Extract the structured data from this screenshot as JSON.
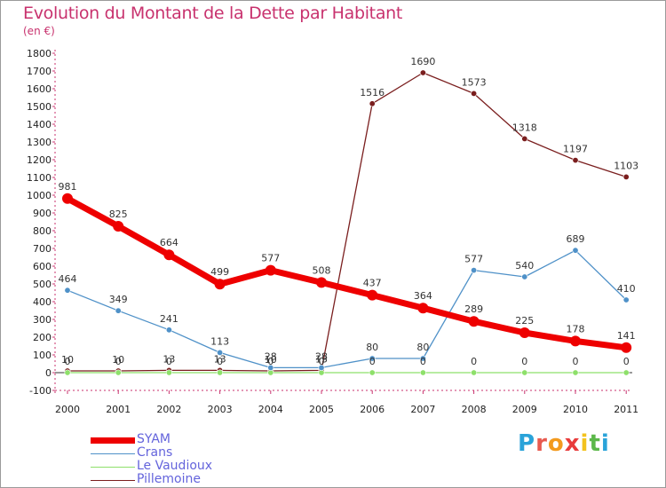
{
  "title": "Evolution du Montant de la Dette par Habitant",
  "subtitle": "(en €)",
  "logo": {
    "text": "Proxiti",
    "letter_colors": [
      "#2aa3d9",
      "#e85a4f",
      "#f39a1e",
      "#e83c3c",
      "#f3c31e",
      "#5cb84a",
      "#2aa3d9"
    ]
  },
  "chart_data": {
    "type": "line",
    "title": "Evolution du Montant de la Dette par Habitant",
    "subtitle": "(en €)",
    "xlabel": "",
    "ylabel": "",
    "x": [
      "2000",
      "2001",
      "2002",
      "2003",
      "2004",
      "2005",
      "2006",
      "2007",
      "2008",
      "2009",
      "2010",
      "2011"
    ],
    "ylim": [
      -100,
      1800
    ],
    "yticks": [
      -100,
      0,
      100,
      200,
      300,
      400,
      500,
      600,
      700,
      800,
      900,
      1000,
      1100,
      1200,
      1300,
      1400,
      1500,
      1600,
      1700,
      1800
    ],
    "grid": false,
    "legend": "bottom-left",
    "series": [
      {
        "name": "Pillemoine",
        "color": "#7a1e1e",
        "values": [
          10,
          10,
          13,
          13,
          10,
          13,
          1516,
          1690,
          1573,
          1318,
          1197,
          1103
        ],
        "labels": [
          "10",
          "10",
          "13",
          "13",
          "10",
          "13",
          "1516",
          "1690",
          "1573",
          "1318",
          "1197",
          "1103"
        ]
      },
      {
        "name": "Le Vaudioux",
        "color": "#8ee06a",
        "values": [
          0,
          0,
          0,
          0,
          0,
          0,
          0,
          0,
          0,
          0,
          0,
          0
        ],
        "labels": [
          "0",
          "0",
          "0",
          "0",
          "0",
          "0",
          "0",
          "0",
          "0",
          "0",
          "0",
          "0"
        ]
      },
      {
        "name": "Crans",
        "color": "#4f91c8",
        "values": [
          464,
          349,
          241,
          113,
          28,
          28,
          80,
          80,
          577,
          540,
          689,
          410
        ],
        "labels": [
          "464",
          "349",
          "241",
          "113",
          "28",
          "28",
          "80",
          "80",
          "577",
          "540",
          "689",
          "410"
        ]
      },
      {
        "name": "SYAM",
        "color": "#ee0000",
        "values": [
          981,
          825,
          664,
          499,
          577,
          508,
          437,
          364,
          289,
          225,
          178,
          141
        ],
        "labels": [
          "981",
          "825",
          "664",
          "499",
          "577",
          "508",
          "437",
          "364",
          "289",
          "225",
          "178",
          "141"
        ]
      }
    ]
  }
}
